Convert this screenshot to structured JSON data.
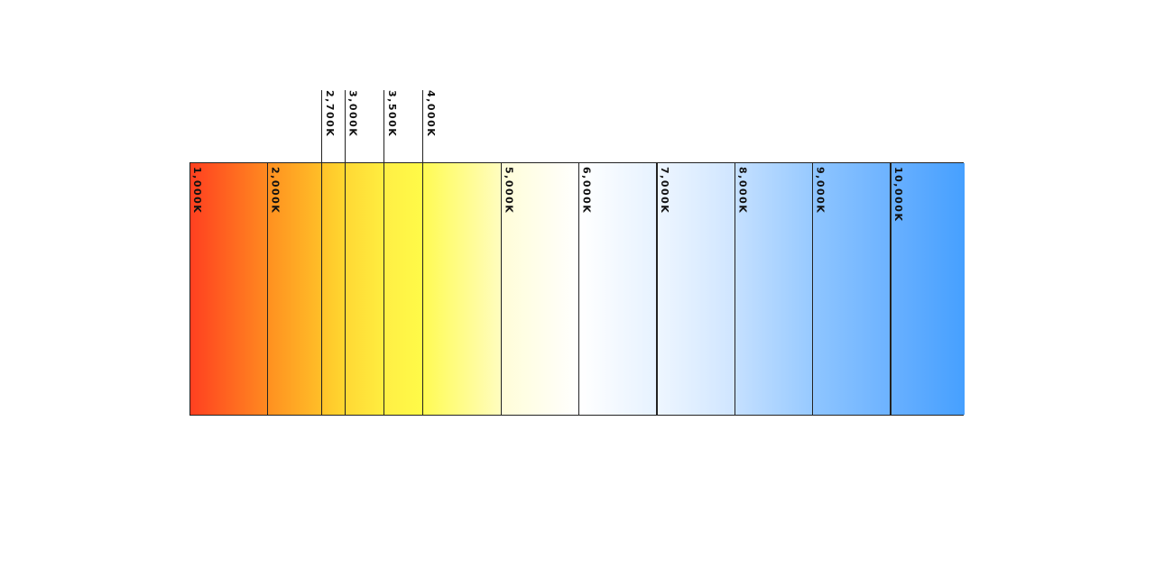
{
  "diagram": {
    "kelvin_min": 1000,
    "kelvin_max": 10000,
    "bands": [
      {
        "from": 1000,
        "to": 2000,
        "color_start": "#ff4020",
        "color_end": "#ff8a20"
      },
      {
        "from": 2000,
        "to": 2700,
        "color_start": "#ff9020",
        "color_end": "#ffc028"
      },
      {
        "from": 2700,
        "to": 3000,
        "color_start": "#ffc52a",
        "color_end": "#ffd830"
      },
      {
        "from": 3000,
        "to": 3500,
        "color_start": "#ffd935",
        "color_end": "#ffee40"
      },
      {
        "from": 3500,
        "to": 4000,
        "color_start": "#ffef45",
        "color_end": "#fffb48"
      },
      {
        "from": 4000,
        "to": 5000,
        "color_start": "#fffb55",
        "color_end": "#fffdc0"
      },
      {
        "from": 5000,
        "to": 6000,
        "color_start": "#fffdd8",
        "color_end": "#ffffff"
      },
      {
        "from": 6000,
        "to": 7000,
        "color_start": "#ffffff",
        "color_end": "#e6f2ff"
      },
      {
        "from": 7000,
        "to": 8000,
        "color_start": "#eef6ff",
        "color_end": "#cfe5ff"
      },
      {
        "from": 8000,
        "to": 9000,
        "color_start": "#c5e0ff",
        "color_end": "#96c9ff"
      },
      {
        "from": 9000,
        "to": 10000,
        "color_start": "#8ec5ff",
        "color_end": "#6cb2ff"
      },
      {
        "from": 10000,
        "to": null,
        "color_start": "#69b0ff",
        "color_end": "#46a0ff"
      }
    ],
    "inner_labels": [
      {
        "kelvin": 1000,
        "text": "1,000K"
      },
      {
        "kelvin": 2000,
        "text": "2,000K"
      },
      {
        "kelvin": 5000,
        "text": "5,000K"
      },
      {
        "kelvin": 6000,
        "text": "6,000K"
      },
      {
        "kelvin": 7000,
        "text": "7,000K"
      },
      {
        "kelvin": 8000,
        "text": "8,000K"
      },
      {
        "kelvin": 9000,
        "text": "9,000K"
      },
      {
        "kelvin": 10000,
        "text": "10,000K"
      }
    ],
    "callout_labels": [
      {
        "kelvin": 2700,
        "text": "2,700K"
      },
      {
        "kelvin": 3000,
        "text": "3,000K"
      },
      {
        "kelvin": 3500,
        "text": "3,500K"
      },
      {
        "kelvin": 4000,
        "text": "4,000K"
      }
    ],
    "line_color": "#222222"
  }
}
